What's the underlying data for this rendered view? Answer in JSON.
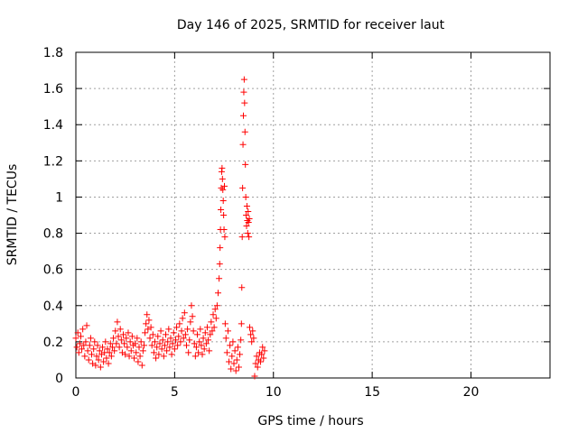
{
  "chart_data": {
    "type": "scatter",
    "title": "Day 146 of 2025, SRMTID for receiver laut",
    "xlabel": "GPS time / hours",
    "ylabel": "SRMTID / TECUs",
    "xlim": [
      0,
      24
    ],
    "ylim": [
      0,
      1.8
    ],
    "xticks": [
      0,
      5,
      10,
      15,
      20
    ],
    "yticks": [
      0,
      0.2,
      0.4,
      0.6,
      0.8,
      1,
      1.2,
      1.4,
      1.6,
      1.8
    ],
    "xtick_labels": [
      "0",
      "5",
      "10",
      "15",
      "20"
    ],
    "ytick_labels": [
      "0",
      "0.2",
      "0.4",
      "0.6",
      "0.8",
      "1",
      "1.2",
      "1.4",
      "1.6",
      "1.8"
    ],
    "grid": true,
    "marker": "plus",
    "color": "#ff0000",
    "series": [
      {
        "name": "SRMTID",
        "points": [
          [
            0.0,
            0.22
          ],
          [
            0.05,
            0.17
          ],
          [
            0.1,
            0.25
          ],
          [
            0.15,
            0.14
          ],
          [
            0.2,
            0.19
          ],
          [
            0.25,
            0.23
          ],
          [
            0.3,
            0.16
          ],
          [
            0.35,
            0.27
          ],
          [
            0.4,
            0.18
          ],
          [
            0.45,
            0.12
          ],
          [
            0.5,
            0.2
          ],
          [
            0.55,
            0.29
          ],
          [
            0.6,
            0.15
          ],
          [
            0.65,
            0.1
          ],
          [
            0.7,
            0.18
          ],
          [
            0.75,
            0.22
          ],
          [
            0.8,
            0.13
          ],
          [
            0.85,
            0.08
          ],
          [
            0.9,
            0.16
          ],
          [
            0.95,
            0.2
          ],
          [
            1.0,
            0.07
          ],
          [
            1.05,
            0.12
          ],
          [
            1.1,
            0.18
          ],
          [
            1.15,
            0.1
          ],
          [
            1.2,
            0.15
          ],
          [
            1.25,
            0.06
          ],
          [
            1.3,
            0.13
          ],
          [
            1.35,
            0.17
          ],
          [
            1.4,
            0.09
          ],
          [
            1.45,
            0.14
          ],
          [
            1.5,
            0.2
          ],
          [
            1.55,
            0.11
          ],
          [
            1.6,
            0.16
          ],
          [
            1.65,
            0.08
          ],
          [
            1.7,
            0.14
          ],
          [
            1.75,
            0.19
          ],
          [
            1.8,
            0.12
          ],
          [
            1.85,
            0.17
          ],
          [
            1.9,
            0.22
          ],
          [
            1.95,
            0.15
          ],
          [
            2.0,
            0.26
          ],
          [
            2.05,
            0.19
          ],
          [
            2.1,
            0.31
          ],
          [
            2.15,
            0.23
          ],
          [
            2.2,
            0.17
          ],
          [
            2.25,
            0.27
          ],
          [
            2.3,
            0.21
          ],
          [
            2.35,
            0.14
          ],
          [
            2.4,
            0.24
          ],
          [
            2.45,
            0.19
          ],
          [
            2.5,
            0.13
          ],
          [
            2.55,
            0.22
          ],
          [
            2.6,
            0.17
          ],
          [
            2.65,
            0.25
          ],
          [
            2.7,
            0.12
          ],
          [
            2.75,
            0.2
          ],
          [
            2.8,
            0.15
          ],
          [
            2.85,
            0.23
          ],
          [
            2.9,
            0.18
          ],
          [
            2.95,
            0.11
          ],
          [
            3.0,
            0.19
          ],
          [
            3.05,
            0.14
          ],
          [
            3.1,
            0.22
          ],
          [
            3.15,
            0.09
          ],
          [
            3.2,
            0.17
          ],
          [
            3.25,
            0.12
          ],
          [
            3.3,
            0.2
          ],
          [
            3.35,
            0.07
          ],
          [
            3.4,
            0.15
          ],
          [
            3.45,
            0.18
          ],
          [
            3.5,
            0.25
          ],
          [
            3.55,
            0.3
          ],
          [
            3.6,
            0.35
          ],
          [
            3.65,
            0.27
          ],
          [
            3.7,
            0.32
          ],
          [
            3.75,
            0.22
          ],
          [
            3.8,
            0.28
          ],
          [
            3.85,
            0.18
          ],
          [
            3.9,
            0.24
          ],
          [
            3.95,
            0.14
          ],
          [
            4.0,
            0.2
          ],
          [
            4.05,
            0.11
          ],
          [
            4.1,
            0.17
          ],
          [
            4.15,
            0.23
          ],
          [
            4.2,
            0.13
          ],
          [
            4.25,
            0.19
          ],
          [
            4.3,
            0.26
          ],
          [
            4.35,
            0.16
          ],
          [
            4.4,
            0.21
          ],
          [
            4.45,
            0.12
          ],
          [
            4.5,
            0.18
          ],
          [
            4.55,
            0.24
          ],
          [
            4.6,
            0.15
          ],
          [
            4.65,
            0.2
          ],
          [
            4.7,
            0.27
          ],
          [
            4.75,
            0.17
          ],
          [
            4.8,
            0.22
          ],
          [
            4.85,
            0.13
          ],
          [
            4.9,
            0.19
          ],
          [
            4.95,
            0.25
          ],
          [
            5.0,
            0.16
          ],
          [
            5.05,
            0.21
          ],
          [
            5.1,
            0.28
          ],
          [
            5.15,
            0.18
          ],
          [
            5.2,
            0.23
          ],
          [
            5.25,
            0.3
          ],
          [
            5.3,
            0.2
          ],
          [
            5.35,
            0.26
          ],
          [
            5.4,
            0.33
          ],
          [
            5.45,
            0.22
          ],
          [
            5.5,
            0.36
          ],
          [
            5.55,
            0.24
          ],
          [
            5.6,
            0.18
          ],
          [
            5.65,
            0.27
          ],
          [
            5.7,
            0.14
          ],
          [
            5.75,
            0.21
          ],
          [
            5.8,
            0.31
          ],
          [
            5.85,
            0.4
          ],
          [
            5.9,
            0.34
          ],
          [
            5.95,
            0.26
          ],
          [
            6.0,
            0.19
          ],
          [
            6.05,
            0.12
          ],
          [
            6.1,
            0.17
          ],
          [
            6.15,
            0.24
          ],
          [
            6.2,
            0.14
          ],
          [
            6.25,
            0.2
          ],
          [
            6.3,
            0.27
          ],
          [
            6.35,
            0.18
          ],
          [
            6.4,
            0.13
          ],
          [
            6.45,
            0.22
          ],
          [
            6.5,
            0.16
          ],
          [
            6.55,
            0.25
          ],
          [
            6.6,
            0.19
          ],
          [
            6.65,
            0.28
          ],
          [
            6.7,
            0.21
          ],
          [
            6.75,
            0.15
          ],
          [
            6.8,
            0.24
          ],
          [
            6.85,
            0.31
          ],
          [
            6.9,
            0.26
          ],
          [
            6.95,
            0.35
          ],
          [
            7.0,
            0.28
          ],
          [
            7.05,
            0.38
          ],
          [
            7.1,
            0.33
          ],
          [
            7.15,
            0.4
          ],
          [
            7.2,
            0.47
          ],
          [
            7.25,
            0.55
          ],
          [
            7.28,
            0.63
          ],
          [
            7.3,
            0.72
          ],
          [
            7.32,
            0.82
          ],
          [
            7.34,
            0.93
          ],
          [
            7.36,
            1.05
          ],
          [
            7.38,
            1.14
          ],
          [
            7.4,
            1.16
          ],
          [
            7.42,
            1.1
          ],
          [
            7.44,
            1.04
          ],
          [
            7.46,
            0.98
          ],
          [
            7.48,
            0.9
          ],
          [
            7.5,
            0.82
          ],
          [
            7.52,
            1.06
          ],
          [
            7.54,
            0.78
          ],
          [
            7.56,
            0.3
          ],
          [
            7.6,
            0.22
          ],
          [
            7.65,
            0.14
          ],
          [
            7.7,
            0.26
          ],
          [
            7.75,
            0.09
          ],
          [
            7.8,
            0.18
          ],
          [
            7.85,
            0.05
          ],
          [
            7.9,
            0.12
          ],
          [
            7.95,
            0.2
          ],
          [
            8.0,
            0.08
          ],
          [
            8.05,
            0.15
          ],
          [
            8.1,
            0.04
          ],
          [
            8.15,
            0.1
          ],
          [
            8.2,
            0.17
          ],
          [
            8.25,
            0.06
          ],
          [
            8.3,
            0.13
          ],
          [
            8.35,
            0.21
          ],
          [
            8.38,
            0.3
          ],
          [
            8.4,
            0.5
          ],
          [
            8.42,
            0.78
          ],
          [
            8.44,
            1.05
          ],
          [
            8.46,
            1.29
          ],
          [
            8.48,
            1.45
          ],
          [
            8.5,
            1.58
          ],
          [
            8.52,
            1.65
          ],
          [
            8.54,
            1.52
          ],
          [
            8.56,
            1.36
          ],
          [
            8.58,
            1.18
          ],
          [
            8.6,
            1.0
          ],
          [
            8.62,
            0.9
          ],
          [
            8.64,
            0.84
          ],
          [
            8.66,
            0.95
          ],
          [
            8.68,
            0.87
          ],
          [
            8.7,
            0.8
          ],
          [
            8.72,
            0.92
          ],
          [
            8.74,
            0.86
          ],
          [
            8.76,
            0.78
          ],
          [
            8.78,
            0.88
          ],
          [
            8.8,
            0.28
          ],
          [
            8.85,
            0.24
          ],
          [
            8.9,
            0.2
          ],
          [
            8.95,
            0.26
          ],
          [
            9.0,
            0.22
          ],
          [
            9.05,
            0.01
          ],
          [
            9.1,
            0.08
          ],
          [
            9.15,
            0.12
          ],
          [
            9.2,
            0.06
          ],
          [
            9.25,
            0.1
          ],
          [
            9.3,
            0.14
          ],
          [
            9.35,
            0.09
          ],
          [
            9.4,
            0.13
          ],
          [
            9.45,
            0.17
          ],
          [
            9.5,
            0.11
          ],
          [
            9.55,
            0.15
          ]
        ]
      }
    ]
  }
}
